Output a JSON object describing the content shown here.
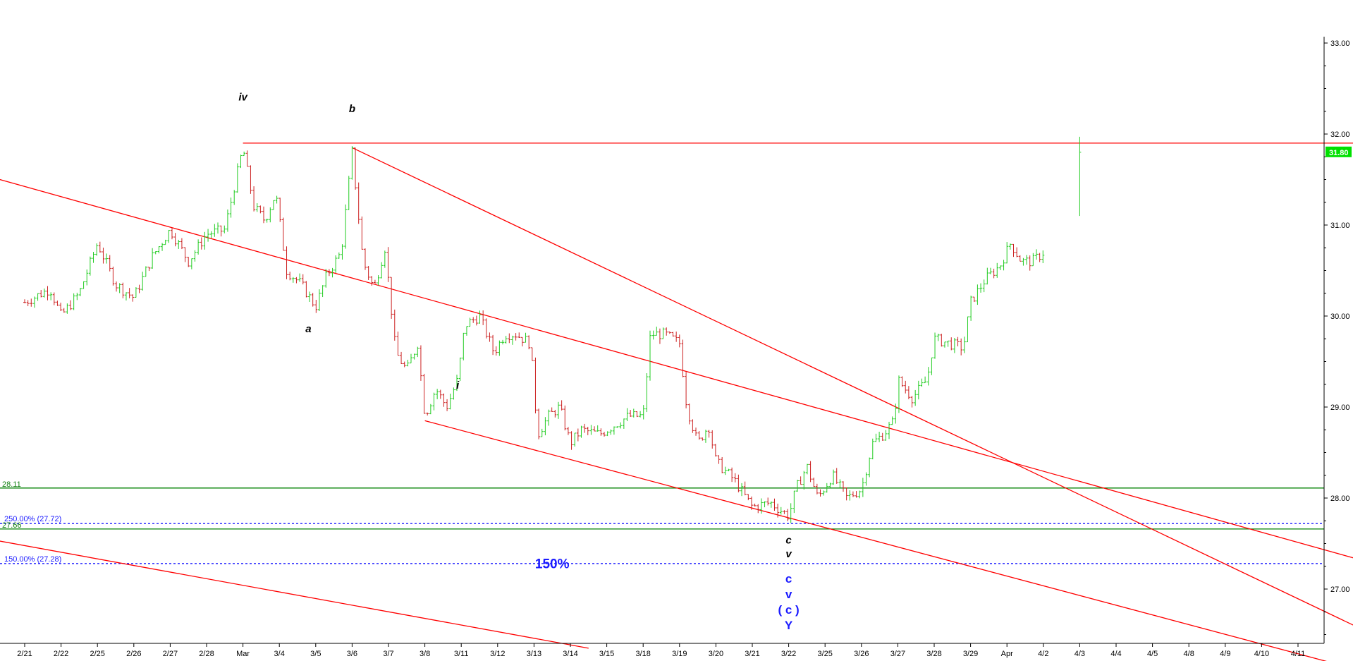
{
  "chart_data": {
    "type": "ohlc-bar",
    "title": "",
    "xlabel": "",
    "ylabel": "",
    "ylim": [
      26.3,
      33.1
    ],
    "grid": false,
    "colors": {
      "up": "#22cc22",
      "down": "#cc2222",
      "trendline": "#ff0000",
      "support": "#008000",
      "fib": "#0000ff",
      "last_price_bg": "#00e000"
    },
    "x_tick_labels": [
      "2/21",
      "2/22",
      "2/25",
      "2/26",
      "2/27",
      "2/28",
      "Mar",
      "3/4",
      "3/5",
      "3/6",
      "3/7",
      "3/8",
      "3/11",
      "3/12",
      "3/13",
      "3/14",
      "3/15",
      "3/18",
      "3/19",
      "3/20",
      "3/21",
      "3/22",
      "3/25",
      "3/26",
      "3/27",
      "3/28",
      "3/29",
      "Apr",
      "4/2",
      "4/3",
      "4/4",
      "4/5",
      "4/8",
      "4/9",
      "4/10",
      "4/11"
    ],
    "y_tick_labels": [
      "33.00",
      "32.00",
      "31.00",
      "30.00",
      "29.00",
      "28.00",
      "27.00"
    ],
    "last_price": "31.80",
    "price_path": [
      {
        "x": 0,
        "y": 30.15
      },
      {
        "x": 0.7,
        "y": 30.3
      },
      {
        "x": 1.0,
        "y": 30.0
      },
      {
        "x": 1.5,
        "y": 30.25
      },
      {
        "x": 2.0,
        "y": 30.8
      },
      {
        "x": 2.5,
        "y": 30.35
      },
      {
        "x": 3.0,
        "y": 30.2
      },
      {
        "x": 3.5,
        "y": 30.65
      },
      {
        "x": 4.0,
        "y": 30.95
      },
      {
        "x": 4.5,
        "y": 30.6
      },
      {
        "x": 5.0,
        "y": 30.9
      },
      {
        "x": 5.5,
        "y": 30.95
      },
      {
        "x": 6.0,
        "y": 31.85
      },
      {
        "x": 6.3,
        "y": 31.2
      },
      {
        "x": 6.6,
        "y": 31.05
      },
      {
        "x": 6.9,
        "y": 31.35
      },
      {
        "x": 7.2,
        "y": 30.5
      },
      {
        "x": 7.6,
        "y": 30.35
      },
      {
        "x": 8.0,
        "y": 30.1
      },
      {
        "x": 8.3,
        "y": 30.45
      },
      {
        "x": 8.7,
        "y": 30.7
      },
      {
        "x": 9.0,
        "y": 31.8
      },
      {
        "x": 9.3,
        "y": 30.6
      },
      {
        "x": 9.6,
        "y": 30.3
      },
      {
        "x": 9.9,
        "y": 30.75
      },
      {
        "x": 10.2,
        "y": 29.6
      },
      {
        "x": 10.5,
        "y": 29.4
      },
      {
        "x": 10.8,
        "y": 29.7
      },
      {
        "x": 11.0,
        "y": 28.9
      },
      {
        "x": 11.3,
        "y": 29.2
      },
      {
        "x": 11.6,
        "y": 29.0
      },
      {
        "x": 11.9,
        "y": 29.3
      },
      {
        "x": 12.1,
        "y": 29.9
      },
      {
        "x": 12.5,
        "y": 30.0
      },
      {
        "x": 12.9,
        "y": 29.6
      },
      {
        "x": 13.2,
        "y": 29.8
      },
      {
        "x": 13.5,
        "y": 29.8
      },
      {
        "x": 13.9,
        "y": 29.7
      },
      {
        "x": 14.1,
        "y": 28.7
      },
      {
        "x": 14.4,
        "y": 28.9
      },
      {
        "x": 14.7,
        "y": 29.0
      },
      {
        "x": 15.0,
        "y": 28.6
      },
      {
        "x": 15.3,
        "y": 28.75
      },
      {
        "x": 15.8,
        "y": 28.7
      },
      {
        "x": 16.2,
        "y": 28.8
      },
      {
        "x": 16.6,
        "y": 28.9
      },
      {
        "x": 17.0,
        "y": 28.9
      },
      {
        "x": 17.2,
        "y": 29.8
      },
      {
        "x": 17.6,
        "y": 29.8
      },
      {
        "x": 18.0,
        "y": 29.7
      },
      {
        "x": 18.2,
        "y": 29.0
      },
      {
        "x": 18.5,
        "y": 28.6
      },
      {
        "x": 18.8,
        "y": 28.8
      },
      {
        "x": 19.0,
        "y": 28.4
      },
      {
        "x": 19.5,
        "y": 28.2
      },
      {
        "x": 20.0,
        "y": 27.9
      },
      {
        "x": 20.5,
        "y": 27.95
      },
      {
        "x": 21.0,
        "y": 27.8
      },
      {
        "x": 21.2,
        "y": 28.1
      },
      {
        "x": 21.5,
        "y": 28.35
      },
      {
        "x": 21.8,
        "y": 28.0
      },
      {
        "x": 22.2,
        "y": 28.25
      },
      {
        "x": 22.6,
        "y": 28.0
      },
      {
        "x": 23.0,
        "y": 28.1
      },
      {
        "x": 23.3,
        "y": 28.6
      },
      {
        "x": 23.6,
        "y": 28.7
      },
      {
        "x": 23.9,
        "y": 28.85
      },
      {
        "x": 24.0,
        "y": 29.3
      },
      {
        "x": 24.4,
        "y": 29.1
      },
      {
        "x": 24.8,
        "y": 29.3
      },
      {
        "x": 25.0,
        "y": 29.75
      },
      {
        "x": 25.4,
        "y": 29.7
      },
      {
        "x": 25.8,
        "y": 29.65
      },
      {
        "x": 26.0,
        "y": 30.15
      },
      {
        "x": 26.4,
        "y": 30.4
      },
      {
        "x": 26.8,
        "y": 30.55
      },
      {
        "x": 27.1,
        "y": 30.8
      },
      {
        "x": 27.4,
        "y": 30.6
      },
      {
        "x": 27.7,
        "y": 30.6
      },
      {
        "x": 28.0,
        "y": 30.7
      },
      {
        "x": 29.0,
        "y": 31.1
      },
      {
        "x": 29.0,
        "y": 31.9
      }
    ],
    "trendlines": [
      {
        "name": "upper channel",
        "points": [
          [
            -6.5,
            32.15
          ],
          [
            36.9,
            27.3
          ]
        ]
      },
      {
        "name": "lower channel",
        "points": [
          [
            11.0,
            28.85
          ],
          [
            36.3,
            26.15
          ]
        ]
      },
      {
        "name": "steep wedge line",
        "points": [
          [
            9.0,
            31.85
          ],
          [
            36.8,
            26.55
          ]
        ]
      },
      {
        "name": "bottom line",
        "points": [
          [
            -6.5,
            27.95
          ],
          [
            15.5,
            26.35
          ]
        ]
      },
      {
        "name": "resistance",
        "points": [
          [
            6.0,
            31.9
          ],
          [
            36.9,
            31.9
          ]
        ]
      }
    ],
    "horizontal_levels": [
      {
        "label": "28.11",
        "value": 28.11,
        "style": "solid",
        "color": "#008000"
      },
      {
        "label": "250.00% (27.72)",
        "value": 27.72,
        "style": "dotted",
        "color": "#0000ff"
      },
      {
        "label": "27.66",
        "value": 27.66,
        "style": "solid",
        "color": "#008000"
      },
      {
        "label": "150.00% (27.28)",
        "value": 27.28,
        "style": "dotted",
        "color": "#0000ff"
      }
    ],
    "annotations": [
      {
        "text": "iv",
        "x": 6.0,
        "y": 32.37,
        "color": "black"
      },
      {
        "text": "b",
        "x": 9.0,
        "y": 32.24,
        "color": "black"
      },
      {
        "text": "a",
        "x": 7.8,
        "y": 29.82,
        "color": "black"
      },
      {
        "text": "i",
        "x": 11.9,
        "y": 29.2,
        "color": "black"
      },
      {
        "text": "c",
        "x": 21.0,
        "y": 27.5,
        "color": "black"
      },
      {
        "text": "v",
        "x": 21.0,
        "y": 27.35,
        "color": "black"
      },
      {
        "text": "c",
        "x": 21.0,
        "y": 27.07,
        "color": "blue"
      },
      {
        "text": "v",
        "x": 21.0,
        "y": 26.9,
        "color": "blue"
      },
      {
        "text": "( c )",
        "x": 21.0,
        "y": 26.73,
        "color": "blue"
      },
      {
        "text": "Y",
        "x": 21.0,
        "y": 26.56,
        "color": "blue"
      },
      {
        "text": "150%",
        "x": 14.5,
        "y": 27.23,
        "color": "blue"
      }
    ]
  }
}
